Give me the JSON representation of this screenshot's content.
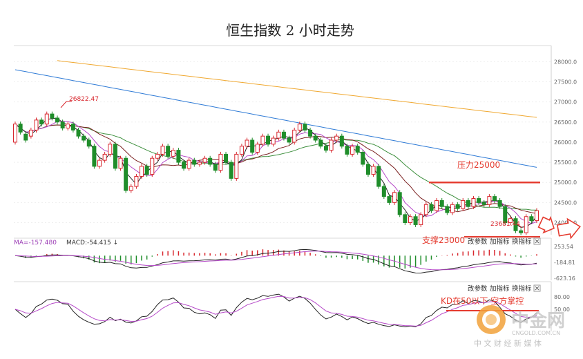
{
  "chart_data": [
    {
      "type": "candlestick",
      "title": "恒生指数 2 小时走势",
      "y_ticks": [
        "28000.0",
        "27500.0",
        "27000.0",
        "26500.0",
        "26000.0",
        "25500.0",
        "25000.0",
        "24500.0",
        "24000.0"
      ],
      "ylim": [
        23700,
        28200
      ],
      "annotations": {
        "high_label": "26822.47",
        "low_label": "23681.44",
        "resistance": {
          "label": "压力25000",
          "value": 25000,
          "color": "#e53b2f"
        },
        "support": {
          "label": "支撑23000",
          "color": "#e53b2f"
        }
      },
      "colors": {
        "up": "#d8262d",
        "down": "#1f8d2a",
        "ma_slow": "#f0a830",
        "ma_mid": "#2f7bd6",
        "ma_green": "#3b8e3b",
        "ma_dark": "#7a1f1f",
        "ma_purple": "#b548c8",
        "ma_black": "#222222"
      },
      "candles": [
        [
          0,
          26000,
          26450
        ],
        [
          1,
          26450,
          26250
        ],
        [
          2,
          26200,
          26050
        ],
        [
          3,
          26150,
          26300
        ],
        [
          4,
          26300,
          26550
        ],
        [
          5,
          26550,
          26450
        ],
        [
          6,
          26450,
          26700
        ],
        [
          7,
          26700,
          26600
        ],
        [
          8,
          26600,
          26500
        ],
        [
          9,
          26500,
          26350
        ],
        [
          10,
          26350,
          26450
        ],
        [
          11,
          26450,
          26300
        ],
        [
          12,
          26300,
          26150
        ],
        [
          13,
          26150,
          26050
        ],
        [
          14,
          26050,
          25900
        ],
        [
          15,
          25900,
          25400
        ],
        [
          16,
          25400,
          25550
        ],
        [
          17,
          25550,
          25700
        ],
        [
          18,
          25700,
          25950
        ],
        [
          19,
          25950,
          25350
        ],
        [
          20,
          25350,
          25600
        ],
        [
          21,
          25600,
          24800
        ],
        [
          22,
          24800,
          24900
        ],
        [
          23,
          24900,
          25150
        ],
        [
          24,
          25150,
          25400
        ],
        [
          25,
          25400,
          25200
        ],
        [
          26,
          25200,
          25600
        ],
        [
          27,
          25600,
          25700
        ],
        [
          28,
          25700,
          25900
        ],
        [
          29,
          25900,
          25650
        ],
        [
          30,
          25650,
          25800
        ],
        [
          31,
          25800,
          25500
        ],
        [
          32,
          25500,
          25350
        ],
        [
          33,
          25350,
          25550
        ],
        [
          34,
          25550,
          25450
        ],
        [
          35,
          25450,
          25500
        ],
        [
          36,
          25500,
          25600
        ],
        [
          37,
          25600,
          25450
        ],
        [
          38,
          25450,
          25300
        ],
        [
          39,
          25300,
          25700
        ],
        [
          40,
          25700,
          25500
        ],
        [
          41,
          25500,
          25100
        ],
        [
          42,
          25100,
          25700
        ],
        [
          43,
          25700,
          25900
        ],
        [
          44,
          25900,
          26050
        ],
        [
          45,
          26050,
          25750
        ],
        [
          46,
          25750,
          25950
        ],
        [
          47,
          25950,
          26150
        ],
        [
          48,
          26150,
          25950
        ],
        [
          49,
          25950,
          26100
        ],
        [
          50,
          26100,
          26250
        ],
        [
          51,
          26250,
          26100
        ],
        [
          52,
          26100,
          26000
        ],
        [
          53,
          26000,
          26300
        ],
        [
          54,
          26300,
          26450
        ],
        [
          55,
          26450,
          26300
        ],
        [
          56,
          26300,
          26150
        ],
        [
          57,
          26150,
          26050
        ],
        [
          58,
          26050,
          25900
        ],
        [
          59,
          25900,
          25800
        ],
        [
          60,
          25800,
          26050
        ],
        [
          61,
          26050,
          26150
        ],
        [
          62,
          26150,
          25900
        ],
        [
          63,
          25900,
          25700
        ],
        [
          64,
          25700,
          25900
        ],
        [
          65,
          25900,
          25750
        ],
        [
          66,
          25750,
          25450
        ],
        [
          67,
          25450,
          25200
        ],
        [
          68,
          25200,
          25400
        ],
        [
          69,
          25400,
          24900
        ],
        [
          70,
          24900,
          24650
        ],
        [
          71,
          24650,
          24500
        ],
        [
          72,
          24500,
          24750
        ],
        [
          73,
          24750,
          24200
        ],
        [
          74,
          24200,
          24000
        ],
        [
          75,
          24000,
          24150
        ],
        [
          76,
          24150,
          23950
        ],
        [
          77,
          23950,
          24200
        ],
        [
          78,
          24200,
          24450
        ],
        [
          79,
          24450,
          24300
        ],
        [
          80,
          24300,
          24550
        ],
        [
          81,
          24550,
          24400
        ],
        [
          82,
          24400,
          24250
        ],
        [
          83,
          24250,
          24450
        ],
        [
          84,
          24450,
          24350
        ],
        [
          85,
          24350,
          24550
        ],
        [
          86,
          24550,
          24400
        ],
        [
          87,
          24400,
          24600
        ],
        [
          88,
          24600,
          24500
        ],
        [
          89,
          24500,
          24450
        ],
        [
          90,
          24450,
          24650
        ],
        [
          91,
          24650,
          24550
        ],
        [
          92,
          24550,
          24400
        ],
        [
          93,
          24400,
          24000
        ],
        [
          94,
          24000,
          24100
        ],
        [
          95,
          24100,
          23800
        ],
        [
          96,
          23800,
          23750
        ],
        [
          97,
          23750,
          24150
        ],
        [
          98,
          24150,
          24050
        ],
        [
          99,
          24050,
          24300
        ]
      ]
    },
    {
      "type": "macd",
      "label_dif": "MA=-157.480",
      "label_macd": "MACD:-54.415 ↓",
      "y_ticks": [
        "253.54",
        "-184.81",
        "-623.16"
      ],
      "ylim": [
        -623.16,
        253.54
      ],
      "buttons": [
        "改参数",
        "加指标",
        "换指标"
      ],
      "annotation": "支撑23000"
    },
    {
      "type": "kd",
      "y_ticks": [
        "80.00",
        "50.00"
      ],
      "ylim": [
        0,
        100
      ],
      "buttons": [
        "改参数",
        "加指标",
        "换指标"
      ],
      "annotation": "KD在50以下  空方掌控"
    }
  ],
  "watermark": {
    "brand": "中金网",
    "domain": "CNGOLD.COM.CN",
    "slogan": "中 文 财 经 新 媒 体"
  }
}
